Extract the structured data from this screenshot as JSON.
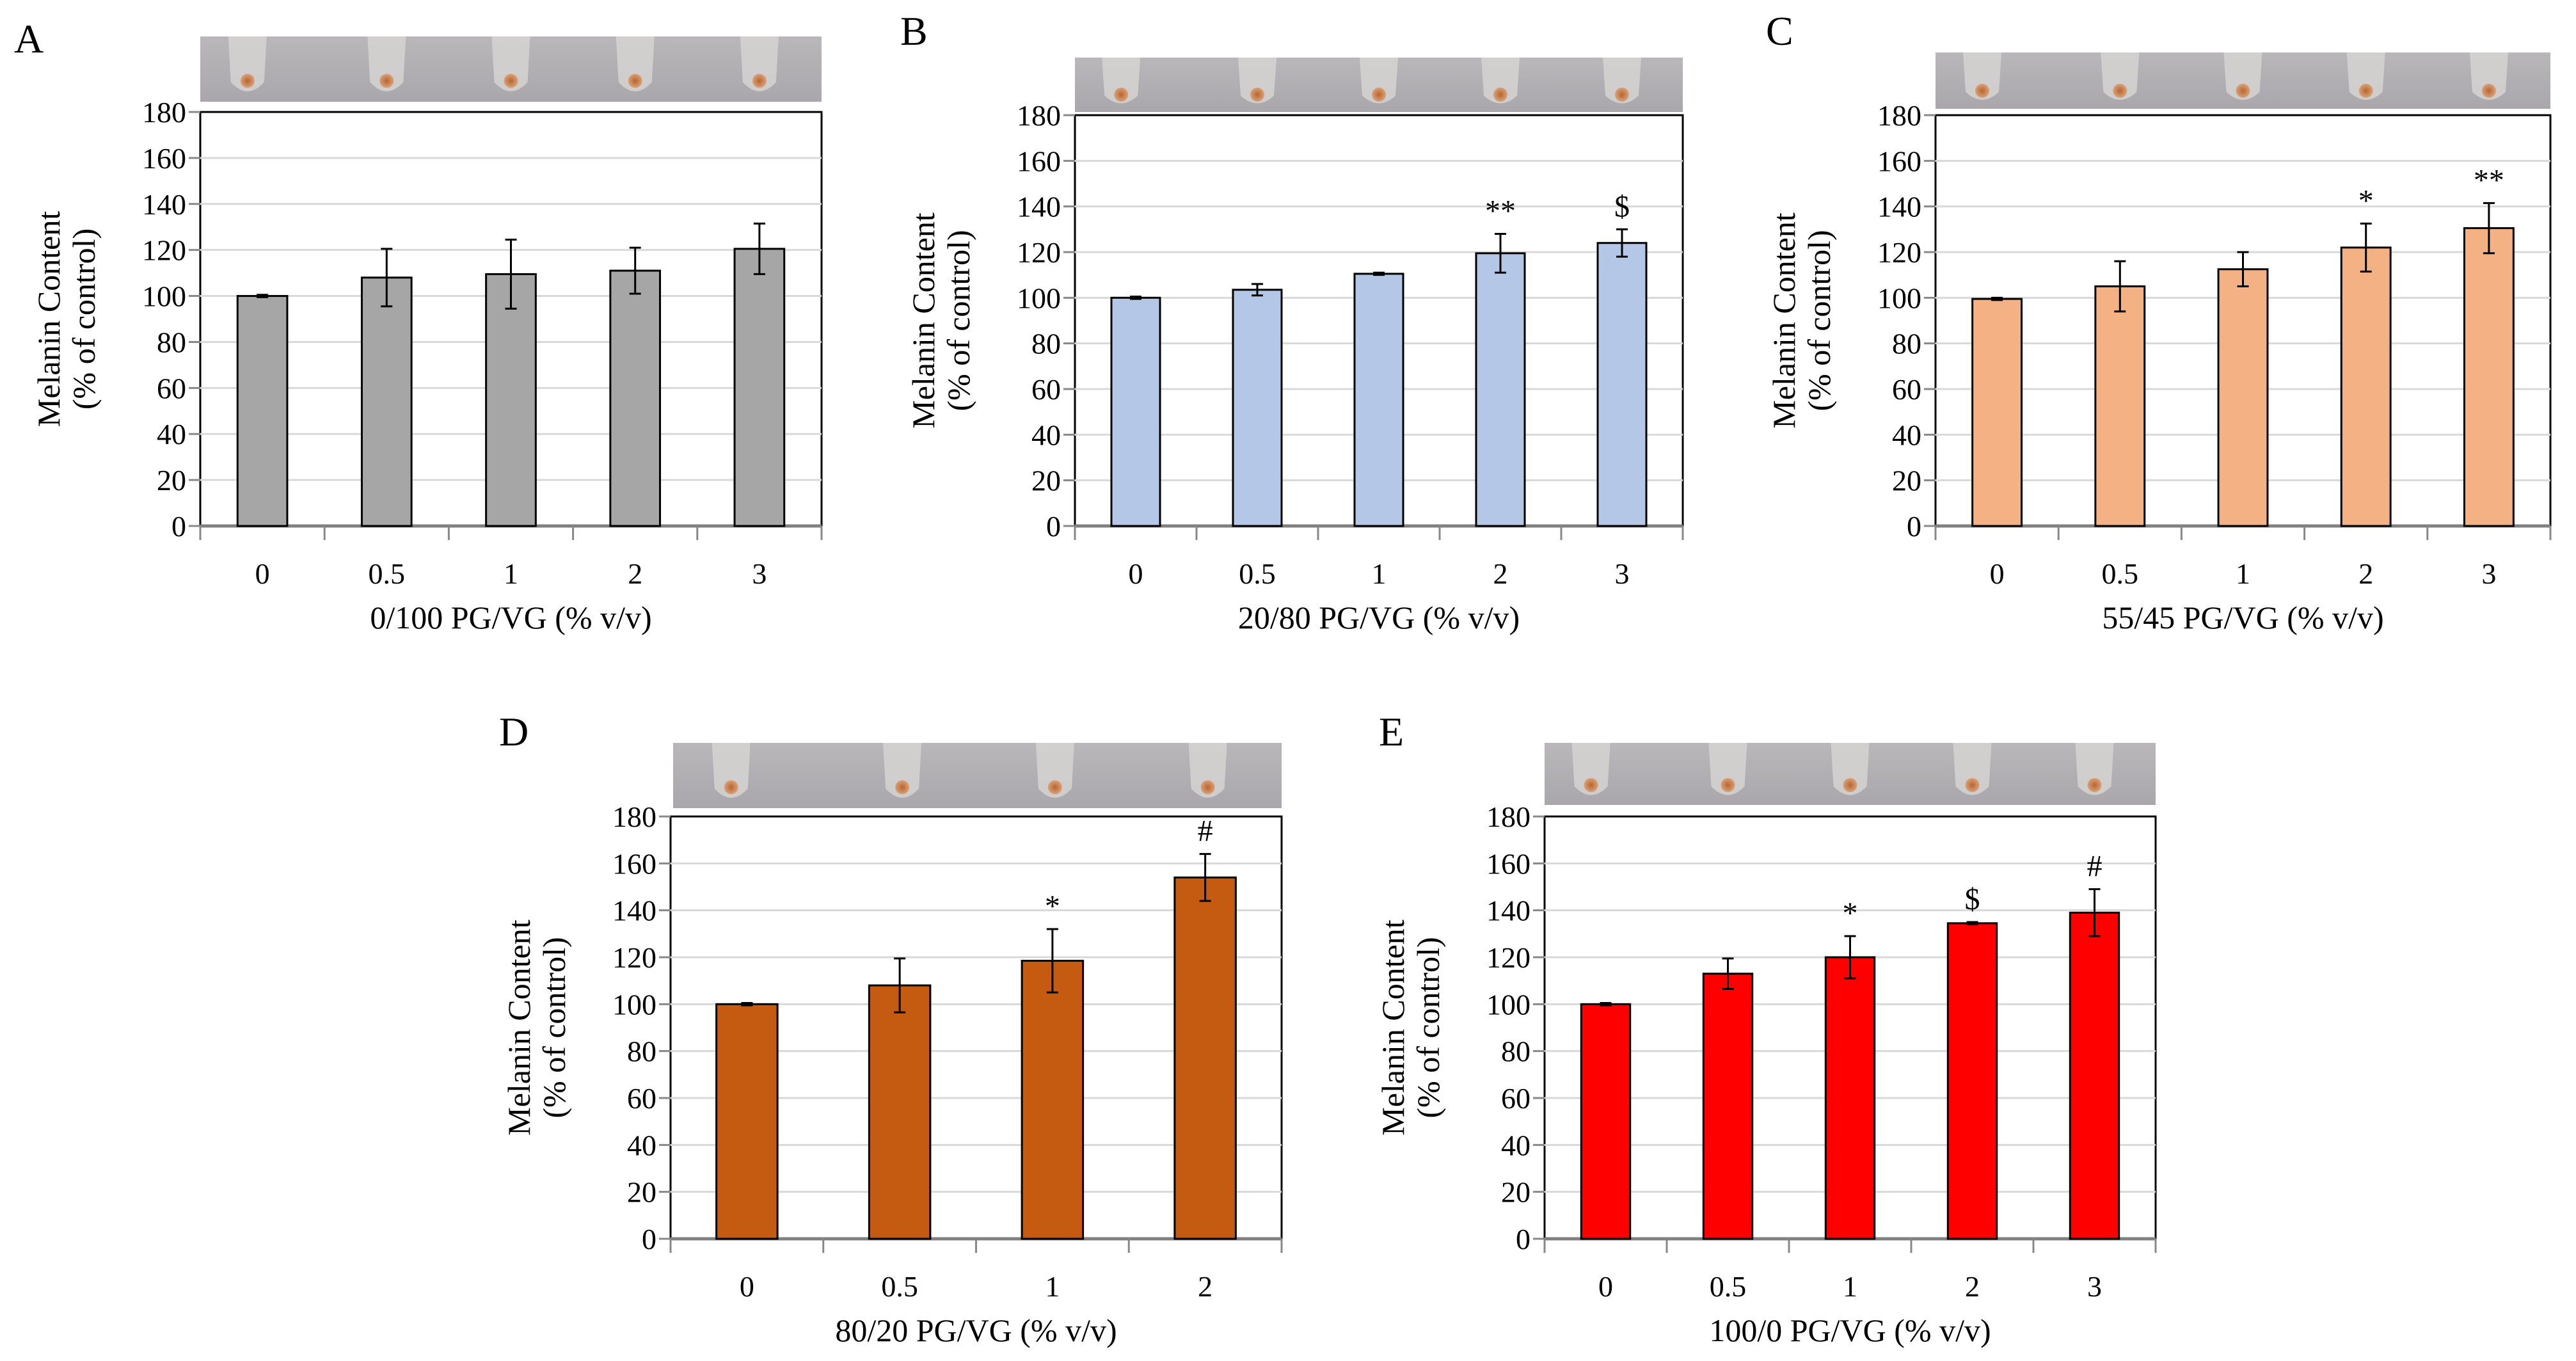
{
  "chart_data": [
    {
      "panel": "A",
      "type": "bar",
      "categories": [
        "0",
        "0.5",
        "1",
        "2",
        "3"
      ],
      "values": [
        100,
        108,
        109.5,
        111,
        120.5
      ],
      "errors": [
        0.5,
        12.5,
        15,
        10,
        11
      ],
      "annotations": [
        "",
        "",
        "",
        "",
        ""
      ],
      "color": "#a6a6a6",
      "xlabel": "0/100 PG/VG (% v/v)",
      "ylabel": [
        "Melanin Content",
        "(% of control)"
      ],
      "ylim": [
        0,
        180
      ],
      "yticks": [
        0,
        20,
        40,
        60,
        80,
        100,
        120,
        140,
        160,
        180
      ],
      "grid": true
    },
    {
      "panel": "B",
      "type": "bar",
      "categories": [
        "0",
        "0.5",
        "1",
        "2",
        "3"
      ],
      "values": [
        100,
        103.5,
        110.5,
        119.5,
        124
      ],
      "errors": [
        0.5,
        2.5,
        0.5,
        8.5,
        6
      ],
      "annotations": [
        "",
        "",
        "",
        "**",
        "$"
      ],
      "color": "#b4c7e7",
      "xlabel": "20/80 PG/VG (% v/v)",
      "ylabel": [
        "Melanin Content",
        "(% of control)"
      ],
      "ylim": [
        0,
        180
      ],
      "yticks": [
        0,
        20,
        40,
        60,
        80,
        100,
        120,
        140,
        160,
        180
      ],
      "grid": true
    },
    {
      "panel": "C",
      "type": "bar",
      "categories": [
        "0",
        "0.5",
        "1",
        "2",
        "3"
      ],
      "values": [
        99.5,
        105,
        112.5,
        122,
        130.5
      ],
      "errors": [
        0.5,
        11,
        7.5,
        10.5,
        11
      ],
      "annotations": [
        "",
        "",
        "",
        "*",
        "**"
      ],
      "color": "#f4b183",
      "xlabel": "55/45 PG/VG (% v/v)",
      "ylabel": [
        "Melanin Content",
        "(% of control)"
      ],
      "ylim": [
        0,
        180
      ],
      "yticks": [
        0,
        20,
        40,
        60,
        80,
        100,
        120,
        140,
        160,
        180
      ],
      "grid": true
    },
    {
      "panel": "D",
      "type": "bar",
      "categories": [
        "0",
        "0.5",
        "1",
        "2"
      ],
      "values": [
        100,
        108,
        118.5,
        154
      ],
      "errors": [
        0.5,
        11.5,
        13.5,
        10
      ],
      "annotations": [
        "",
        "",
        "*",
        "#"
      ],
      "color": "#c55a11",
      "xlabel": "80/20 PG/VG (% v/v)",
      "ylabel": [
        "Melanin Content",
        "(% of control)"
      ],
      "ylim": [
        0,
        180
      ],
      "yticks": [
        0,
        20,
        40,
        60,
        80,
        100,
        120,
        140,
        160,
        180
      ],
      "grid": true
    },
    {
      "panel": "E",
      "type": "bar",
      "categories": [
        "0",
        "0.5",
        "1",
        "2",
        "3"
      ],
      "values": [
        100,
        113,
        120,
        134.5,
        139
      ],
      "errors": [
        0.5,
        6.5,
        9,
        0.5,
        10
      ],
      "annotations": [
        "",
        "",
        "*",
        "$",
        "#"
      ],
      "color": "#ff0000",
      "xlabel": "100/0 PG/VG (% v/v)",
      "ylabel": [
        "Melanin Content",
        "(% of control)"
      ],
      "ylim": [
        0,
        180
      ],
      "yticks": [
        0,
        20,
        40,
        60,
        80,
        100,
        120,
        140,
        160,
        180
      ],
      "grid": true
    }
  ]
}
